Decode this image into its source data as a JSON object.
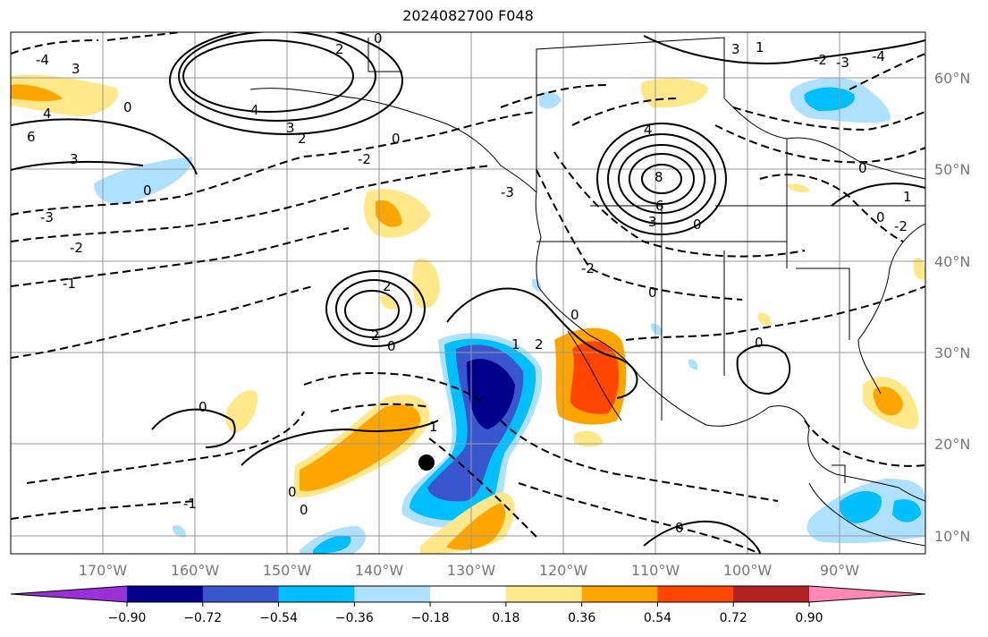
{
  "title": "2024082700 F048",
  "lat_labels": [
    "60°N",
    "50°N",
    "40°N",
    "30°N",
    "20°N",
    "10°N"
  ],
  "lon_labels": [
    "170°W",
    "160°W",
    "150°W",
    "140°W",
    "130°W",
    "120°W",
    "110°W",
    "100°W",
    "90°W"
  ],
  "colorbar": {
    "ticks": [
      "−0.90",
      "−0.72",
      "−0.54",
      "−0.36",
      "−0.18",
      "0.18",
      "0.36",
      "0.54",
      "0.72",
      "0.90"
    ],
    "colors": [
      "#9b30d8",
      "#00008b",
      "#3a56cf",
      "#00bfff",
      "#aee1ff",
      "#ffffff",
      "#ffe88a",
      "#ffa500",
      "#ff4500",
      "#b22222",
      "#ff88b4"
    ]
  },
  "contour_labels": [
    "0",
    "2",
    "4",
    "3",
    "6",
    "8",
    "1",
    "-1",
    "-2",
    "-3",
    "-4"
  ],
  "colors": {
    "negative_dark": "#00008b",
    "negative_mid": "#3a56cf",
    "negative": "#00bfff",
    "negative_light": "#aee1ff",
    "positive_light": "#ffe88a",
    "positive": "#ffa500",
    "positive_strong": "#ff4500"
  }
}
